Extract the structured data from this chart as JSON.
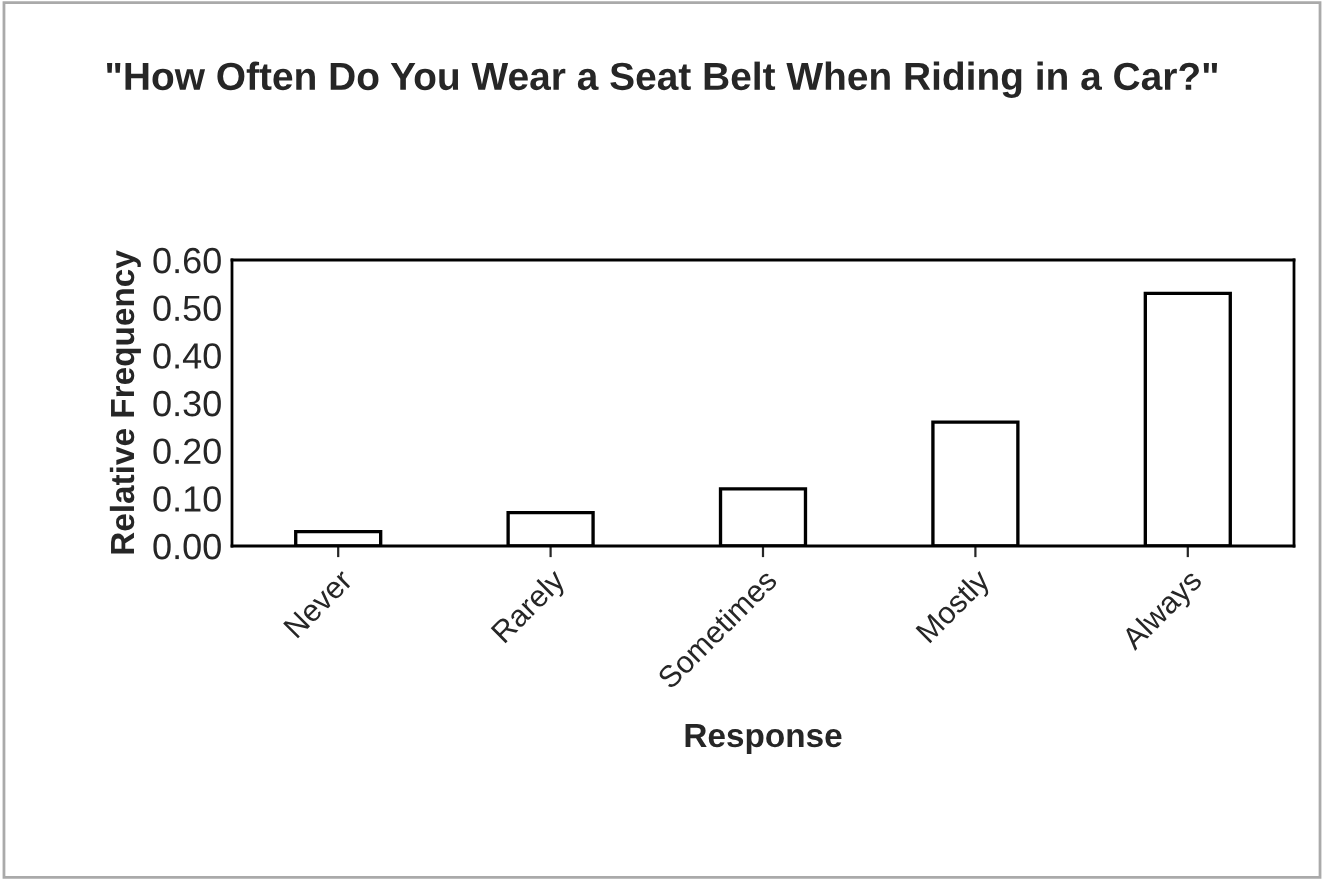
{
  "chart_data": {
    "type": "bar",
    "title": "\"How Often Do You Wear a Seat Belt When Riding in a Car?\"",
    "xlabel": "Response",
    "ylabel": "Relative Frequency",
    "categories": [
      "Never",
      "Rarely",
      "Sometimes",
      "Mostly",
      "Always"
    ],
    "values": [
      0.03,
      0.07,
      0.12,
      0.26,
      0.53
    ],
    "color": "#ffffff",
    "ylim": [
      0,
      0.6
    ],
    "yticks": [
      {
        "value": 0,
        "label": "0.00"
      },
      {
        "value": 0.1,
        "label": "0.10"
      },
      {
        "value": 0.2,
        "label": "0.20"
      },
      {
        "value": 0.3,
        "label": "0.30"
      },
      {
        "value": 0.4,
        "label": "0.40"
      },
      {
        "value": 0.5,
        "label": "0.50"
      },
      {
        "value": 0.6,
        "label": "0.60"
      }
    ],
    "grid": false,
    "legend": false
  }
}
